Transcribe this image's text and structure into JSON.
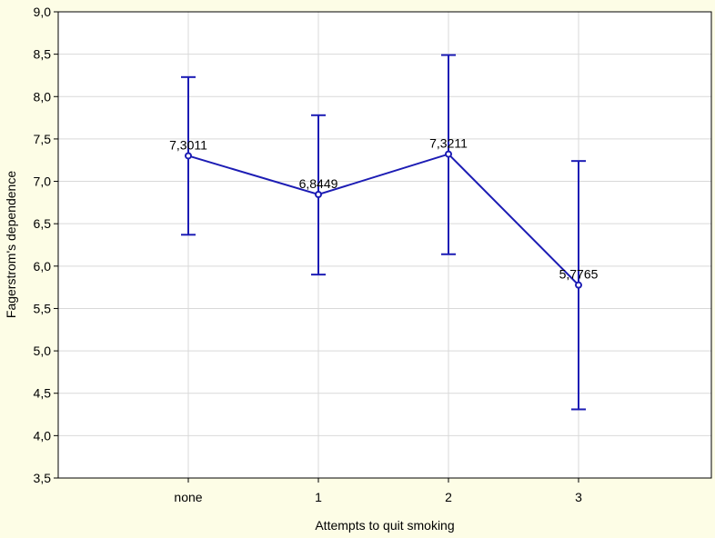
{
  "chart_data": {
    "type": "line",
    "title": "",
    "xlabel": "Attempts to quit smoking",
    "ylabel": "Fagerstrom's dependence",
    "categories": [
      "none",
      "1",
      "2",
      "3"
    ],
    "ylim": [
      3.5,
      9.0
    ],
    "y_ticks": [
      "3,5",
      "4,0",
      "4,5",
      "5,0",
      "5,5",
      "6,0",
      "6,5",
      "7,0",
      "7,5",
      "8,0",
      "8,5",
      "9,0"
    ],
    "grid": true,
    "series": [
      {
        "values": [
          7.3011,
          6.8449,
          7.3211,
          5.7765
        ],
        "value_labels": [
          "7,3011",
          "6,8449",
          "7,3211",
          "5,7765"
        ],
        "error_low": [
          6.37,
          5.9,
          6.14,
          4.31
        ],
        "error_high": [
          8.23,
          7.78,
          8.49,
          7.24
        ]
      }
    ],
    "colors": {
      "line": "#1c1cb4",
      "background": "#fdfde6",
      "plot_area": "#ffffff",
      "grid": "#d9d9d9"
    }
  }
}
